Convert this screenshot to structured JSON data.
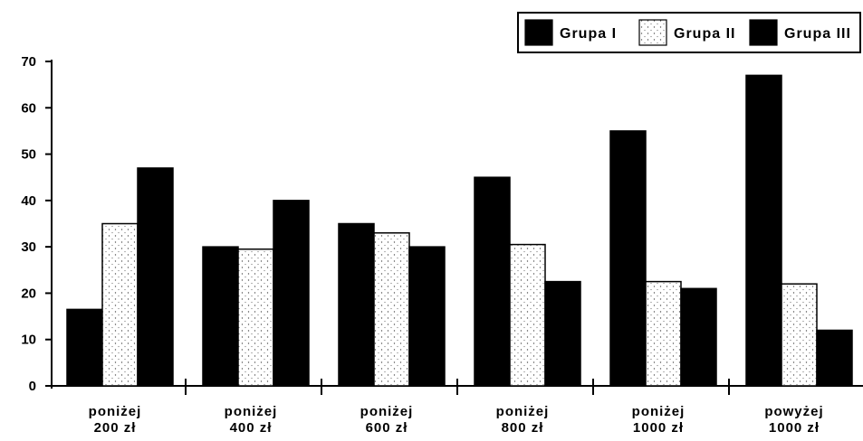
{
  "chart_data": {
    "type": "bar",
    "categories": [
      [
        "poniżej",
        "200 zł"
      ],
      [
        "poniżej",
        "400 zł"
      ],
      [
        "poniżej",
        "600 zł"
      ],
      [
        "poniżej",
        "800 zł"
      ],
      [
        "poniżej",
        "1000 zł"
      ],
      [
        "powyżej",
        "1000 zł"
      ]
    ],
    "series": [
      {
        "name": "Grupa I",
        "values": [
          16.5,
          30,
          35,
          45,
          55,
          67
        ],
        "pattern": "solid",
        "color": "#000000"
      },
      {
        "name": "Grupa II",
        "values": [
          35,
          29.5,
          33,
          30.5,
          22.5,
          22
        ],
        "pattern": "stipple",
        "color": "#ffffff"
      },
      {
        "name": "Grupa III",
        "values": [
          47,
          40,
          30,
          22.5,
          21,
          12
        ],
        "pattern": "solid",
        "color": "#000000"
      }
    ],
    "ylim": [
      0,
      70
    ],
    "yticks": [
      0,
      10,
      20,
      30,
      40,
      50,
      60,
      70
    ],
    "legend_position": "top-right",
    "grid": false,
    "title": "",
    "xlabel": "",
    "ylabel": ""
  }
}
